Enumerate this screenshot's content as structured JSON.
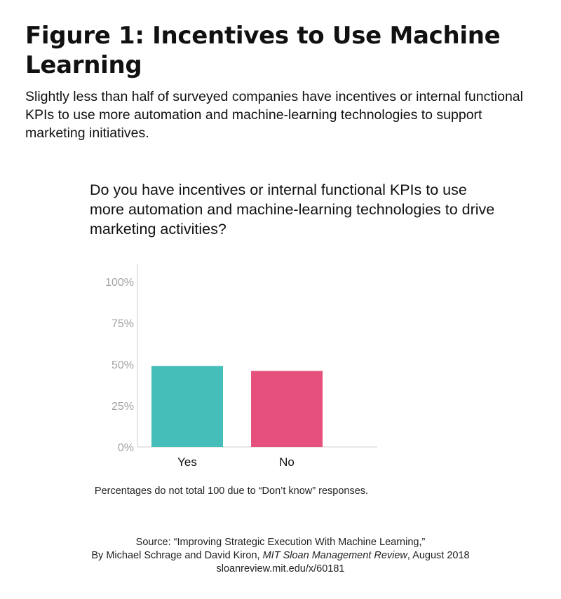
{
  "header": {
    "title": "Figure 1: Incentives to Use Machine Learning",
    "subtitle": "Slightly less than half of surveyed companies have incentives or internal functional KPIs to use more automation and machine-learning technologies to support marketing initiatives."
  },
  "question": "Do you have incentives or internal functional KPIs to use more automation and machine-learning technologies to drive marketing activities?",
  "footnote": "Percentages do not total 100 due to “Don’t know” responses.",
  "source": {
    "line1": "Source: “Improving Strategic Execution With Machine Learning,”",
    "line2_prefix": "By Michael Schrage and David Kiron, ",
    "line2_publication": "MIT Sloan Management Review",
    "line2_suffix": ", August 2018",
    "line3": "sloanreview.mit.edu/x/60181"
  },
  "chart_data": {
    "type": "bar",
    "categories": [
      "Yes",
      "No"
    ],
    "values": [
      49,
      46
    ],
    "colors": [
      "#45bdb9",
      "#e5507d"
    ],
    "ylim": [
      0,
      100
    ],
    "yticks": [
      0,
      25,
      50,
      75,
      100
    ],
    "ytick_labels": [
      "0%",
      "25%",
      "50%",
      "75%",
      "100%"
    ],
    "grid": false
  }
}
